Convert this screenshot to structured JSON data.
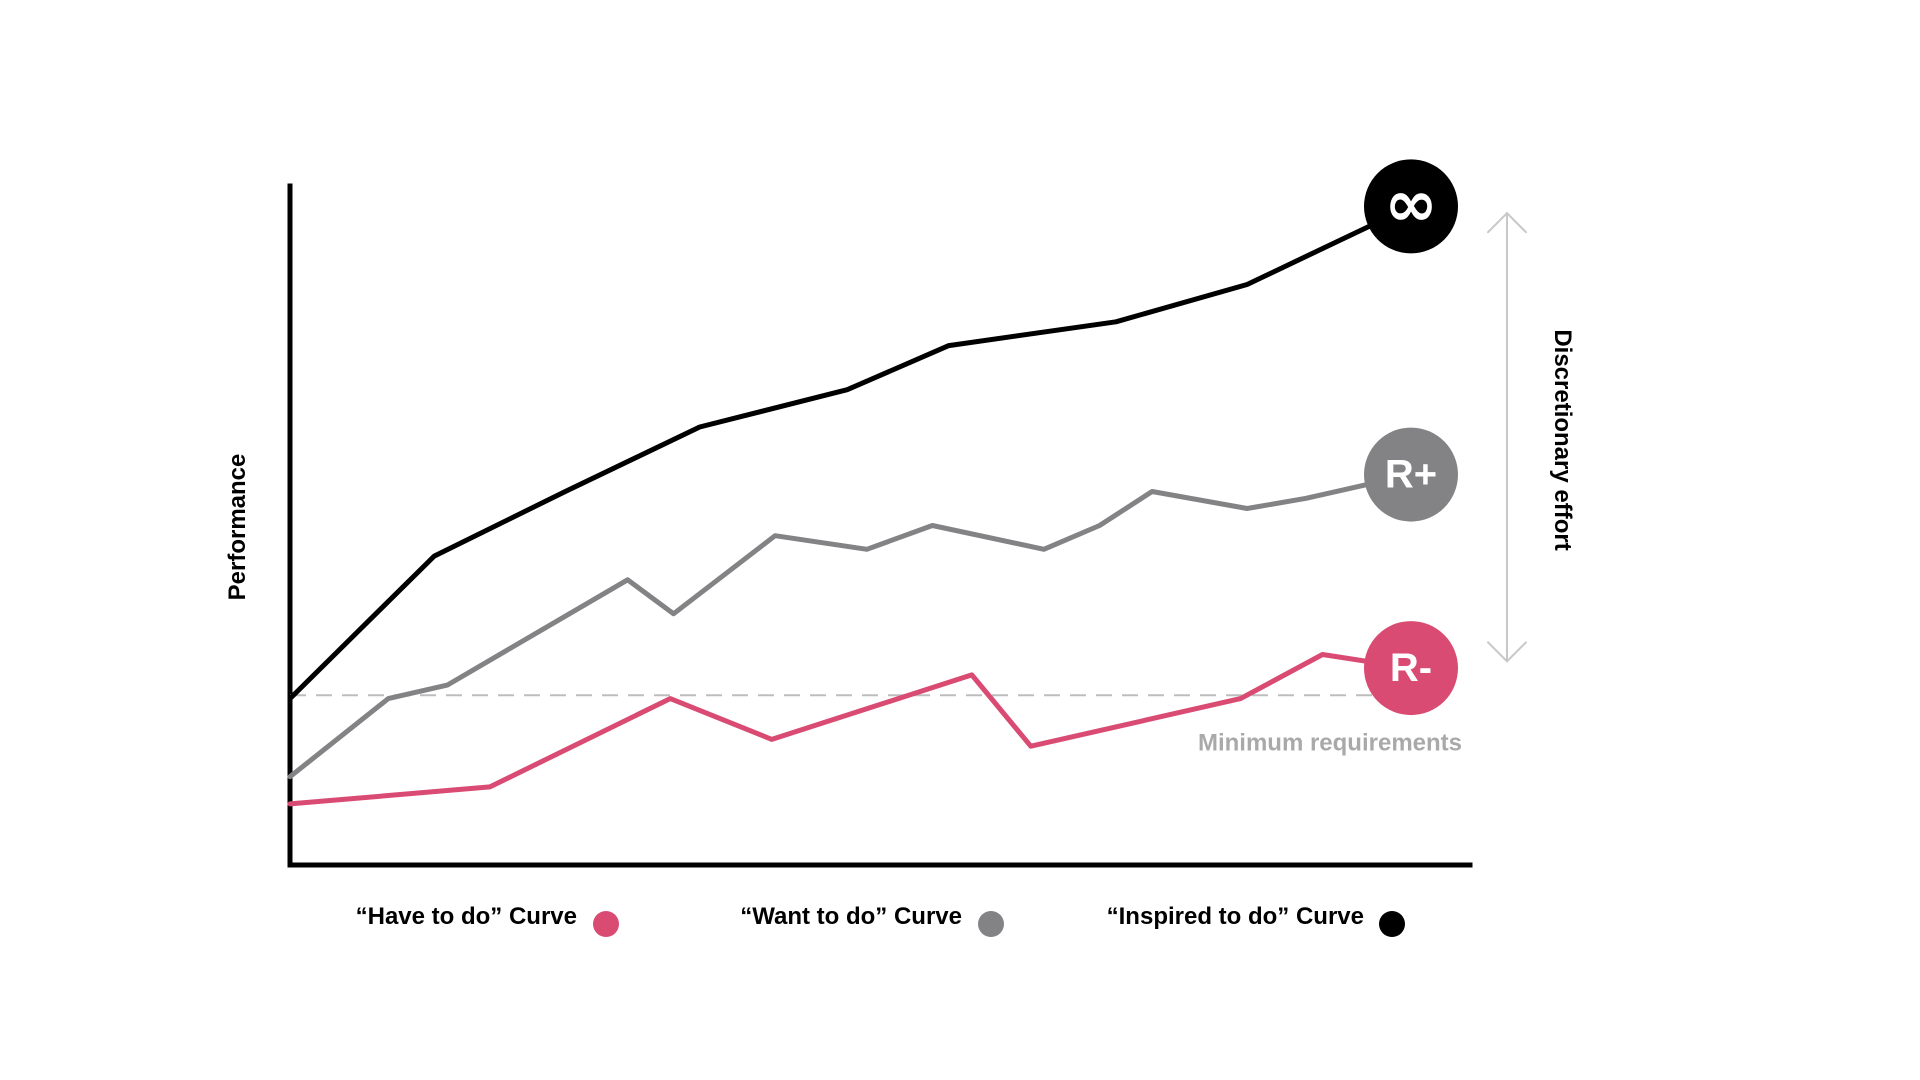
{
  "chart_data": {
    "type": "line",
    "title": "",
    "xlabel": "",
    "ylabel": "Performance",
    "grid": false,
    "legend_position": "bottom",
    "x": [
      0,
      1,
      2,
      3,
      4,
      5,
      6,
      7,
      8,
      9,
      10,
      11,
      12,
      13,
      14,
      15,
      16,
      17,
      18
    ],
    "ylim": [
      0,
      100
    ],
    "series": [
      {
        "key": "have",
        "name": "“Have to do” Curve",
        "color": "#d94b72",
        "badge": "R-",
        "points": [
          [
            0,
            9
          ],
          [
            3.05,
            11.5
          ],
          [
            5.8,
            24.5
          ],
          [
            7.35,
            18.5
          ],
          [
            10.4,
            28
          ],
          [
            11.3,
            17.5
          ],
          [
            14.5,
            24.5
          ],
          [
            15.75,
            31
          ],
          [
            17.1,
            29
          ]
        ]
      },
      {
        "key": "want",
        "name": "“Want to do” Curve",
        "color": "#838385",
        "badge": "R+",
        "points": [
          [
            0,
            13
          ],
          [
            1.5,
            24.5
          ],
          [
            2.4,
            26.5
          ],
          [
            5.15,
            42
          ],
          [
            5.85,
            37
          ],
          [
            7.4,
            48.5
          ],
          [
            8.8,
            46.5
          ],
          [
            9.8,
            50
          ],
          [
            11.5,
            46.5
          ],
          [
            12.35,
            50
          ],
          [
            13.15,
            55
          ],
          [
            14.6,
            52.5
          ],
          [
            15.5,
            54
          ],
          [
            17.1,
            57.5
          ]
        ]
      },
      {
        "key": "inspired",
        "name": "“Inspired to do” Curve",
        "color": "#000000",
        "badge": "∞",
        "points": [
          [
            0,
            24.5
          ],
          [
            2.2,
            45.5
          ],
          [
            4.2,
            55
          ],
          [
            6.25,
            64.5
          ],
          [
            8.5,
            70
          ],
          [
            10.05,
            76.5
          ],
          [
            12.6,
            80
          ],
          [
            14.6,
            85.5
          ],
          [
            17.1,
            97
          ]
        ]
      }
    ],
    "threshold": {
      "value": 25,
      "label": "Minimum requirements"
    },
    "range_annotation": {
      "label": "Discretionary effort",
      "from": 30,
      "to": 96
    }
  }
}
